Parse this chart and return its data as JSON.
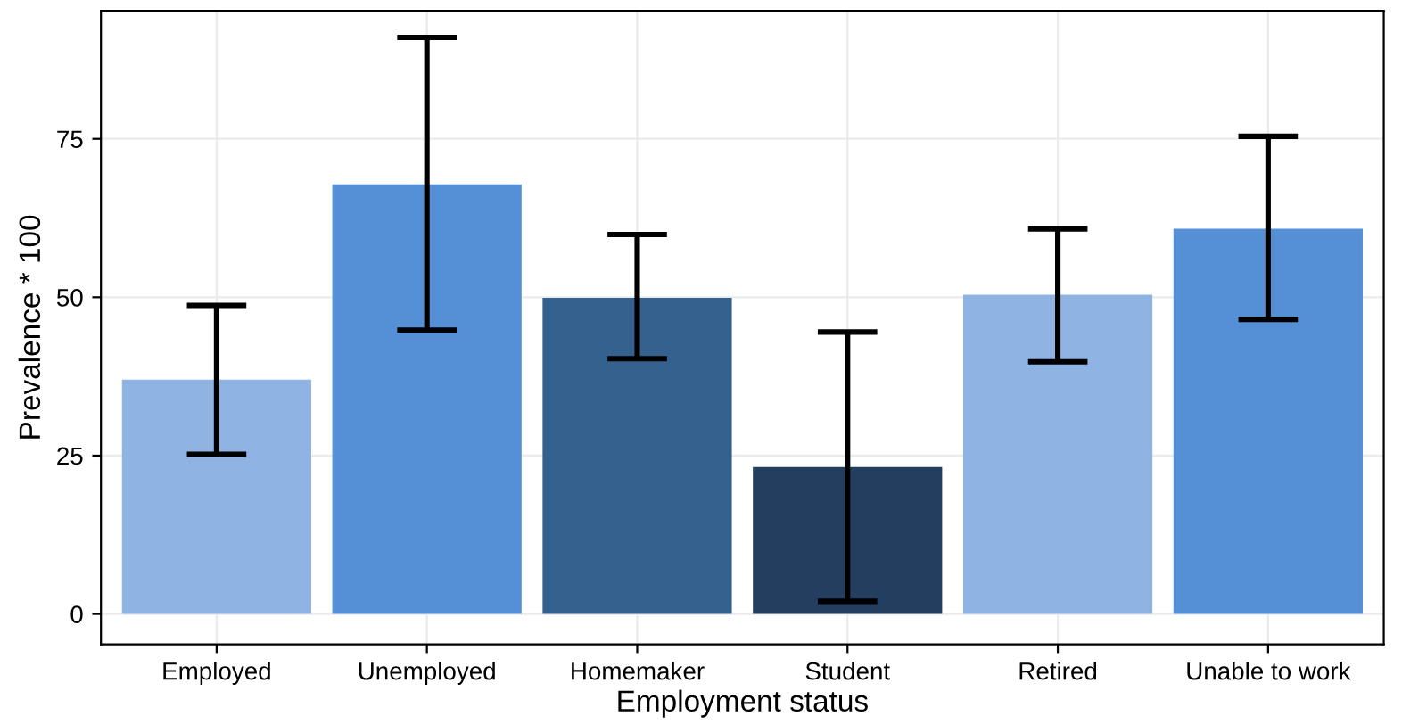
{
  "chart_data": {
    "type": "bar",
    "xlabel": "Employment status",
    "ylabel": "Prevalence * 100",
    "categories": [
      "Employed",
      "Unemployed",
      "Homemaker",
      "Student",
      "Retired",
      "Unable to work"
    ],
    "values": [
      37.0,
      67.8,
      49.9,
      23.2,
      50.4,
      60.8
    ],
    "errors": [
      [
        25.2,
        48.7
      ],
      [
        44.8,
        91.0
      ],
      [
        40.3,
        59.9
      ],
      [
        2.0,
        44.5
      ],
      [
        39.8,
        60.8
      ],
      [
        46.5,
        75.4
      ]
    ],
    "colors": [
      "#8fb3e3",
      "#558fd6",
      "#35618f",
      "#243e60",
      "#8fb3e3",
      "#558fd6"
    ],
    "ylim": [
      -4.8,
      95.2
    ],
    "yticks": [
      0,
      25,
      50,
      75
    ],
    "grid": true
  }
}
